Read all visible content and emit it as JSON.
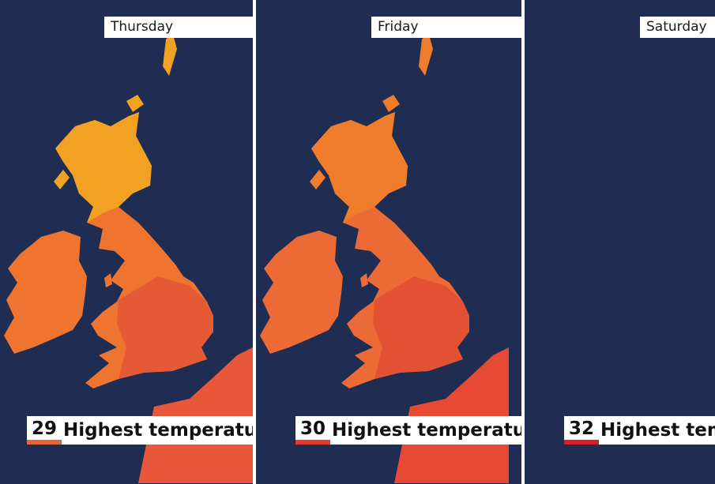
{
  "caption": "Highest temperature",
  "panels": [
    {
      "day": "Thursday",
      "value": "29",
      "swatch": "#e8673a",
      "land": "#ef7430",
      "north": "#f2a222",
      "south": "#e55a34",
      "sea": "#e9573a"
    },
    {
      "day": "Friday",
      "value": "30",
      "swatch": "#e53d2c",
      "land": "#ec6a35",
      "north": "#ef7d2c",
      "south": "#e35135",
      "sea": "#e74a33"
    },
    {
      "day": "Saturday",
      "value": "32",
      "swatch": "#d6202a",
      "land": "#ec6a35",
      "north": "#ef7f2a",
      "south": "#e23a2f",
      "sea": "#d92f2c"
    }
  ]
}
